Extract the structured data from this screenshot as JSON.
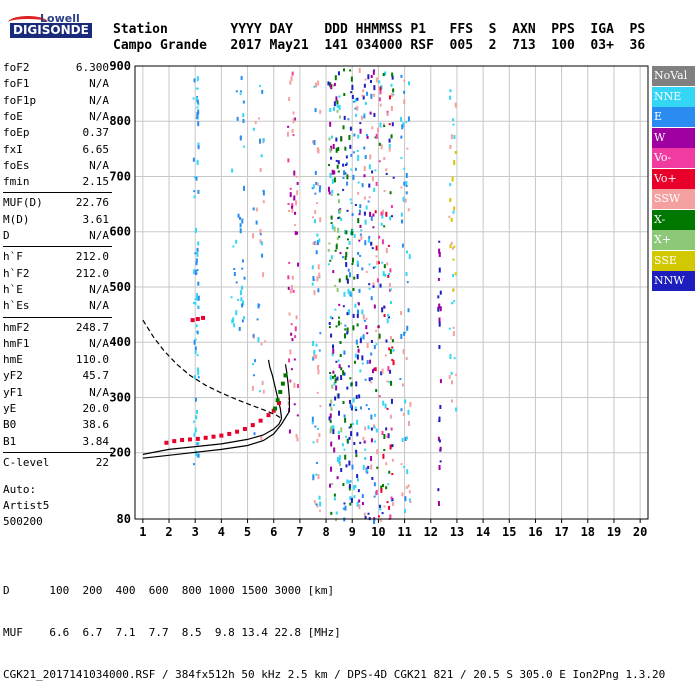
{
  "logo": {
    "brand": "Lowell",
    "product": "DIGISONDE"
  },
  "header": {
    "line1": "Station        YYYY DAY    DDD HHMMSS P1   FFS  S  AXN  PPS  IGA  PS",
    "line2": "Campo Grande   2017 May21  141 034000 RSF  005  2  713  100  03+  36"
  },
  "params": [
    {
      "k": "foF2",
      "v": "6.300"
    },
    {
      "k": "foF1",
      "v": "N/A"
    },
    {
      "k": "foF1p",
      "v": "N/A"
    },
    {
      "k": "foE",
      "v": "N/A"
    },
    {
      "k": "foEp",
      "v": "0.37"
    },
    {
      "k": "fxI",
      "v": "6.65"
    },
    {
      "k": "foEs",
      "v": "N/A"
    },
    {
      "k": "fmin",
      "v": "2.15"
    },
    {
      "k": "MUF(D)",
      "v": "22.76"
    },
    {
      "k": "M(D)",
      "v": "3.61"
    },
    {
      "k": "D",
      "v": "N/A"
    },
    {
      "k": "h`F",
      "v": "212.0"
    },
    {
      "k": "h`F2",
      "v": "212.0"
    },
    {
      "k": "h`E",
      "v": "N/A"
    },
    {
      "k": "h`Es",
      "v": "N/A"
    },
    {
      "k": "hmF2",
      "v": "248.7"
    },
    {
      "k": "hmF1",
      "v": "N/A"
    },
    {
      "k": "hmE",
      "v": "110.0"
    },
    {
      "k": "yF2",
      "v": "45.7"
    },
    {
      "k": "yF1",
      "v": "N/A"
    },
    {
      "k": "yE",
      "v": "20.0"
    },
    {
      "k": "B0",
      "v": "38.6"
    },
    {
      "k": "B1",
      "v": "3.84"
    },
    {
      "k": "C-level",
      "v": "22"
    }
  ],
  "auto": {
    "l1": "Auto:",
    "l2": "Artist5",
    "l3": "500200"
  },
  "legend": [
    {
      "label": "NoVal",
      "color": "#808080"
    },
    {
      "label": "NNE",
      "color": "#33d6f5"
    },
    {
      "label": "E",
      "color": "#2a8cf0"
    },
    {
      "label": "W",
      "color": "#a000a0"
    },
    {
      "label": "Vo-",
      "color": "#f03ca0"
    },
    {
      "label": "Vo+",
      "color": "#e8002a"
    },
    {
      "label": "SSW",
      "color": "#f5a0a0"
    },
    {
      "label": "X-",
      "color": "#007800"
    },
    {
      "label": "X+",
      "color": "#8cc878"
    },
    {
      "label": "SSE",
      "color": "#d2c800"
    },
    {
      "label": "NNW",
      "color": "#1e1ebe"
    }
  ],
  "footer": {
    "d_row": "D      100  200  400  600  800 1000 1500 3000 [km]",
    "muf_row": "MUF    6.6  6.7  7.1  7.7  8.5  9.8 13.4 22.8 [MHz]",
    "info": "CGK21_2017141034000.RSF / 384fx512h 50 kHz 2.5 km / DPS-4D CGK21 821 / 20.5 S 305.0 E Ion2Png 1.3.20"
  },
  "chart_data": {
    "type": "scatter",
    "xlim": [
      0.7,
      20.3
    ],
    "ylim": [
      80,
      900
    ],
    "x_ticks": [
      "1",
      "2",
      "3",
      "4",
      "5",
      "6",
      "7",
      "8",
      "9",
      "10",
      "11",
      "12",
      "13",
      "14",
      "15",
      "16",
      "17",
      "18",
      "19",
      "20"
    ],
    "y_ticks": [
      "80",
      "200",
      "300",
      "400",
      "500",
      "600",
      "700",
      "800",
      "900"
    ],
    "grid": true,
    "legend_position": "right",
    "series": [
      {
        "name": "Vo+",
        "color": "#e8002a",
        "x": [
          1.9,
          2.2,
          2.5,
          2.8,
          3.1,
          3.4,
          3.7,
          4.0,
          4.3,
          4.6,
          4.9,
          5.2,
          5.5,
          5.8,
          6.0,
          6.2,
          2.9,
          3.1,
          3.3
        ],
        "y": [
          218,
          221,
          223,
          224,
          225,
          227,
          229,
          231,
          234,
          238,
          243,
          250,
          258,
          268,
          276,
          290,
          440,
          442,
          444
        ]
      },
      {
        "name": "X-",
        "color": "#007800",
        "x": [
          6.05,
          6.15,
          6.25,
          6.35,
          6.45
        ],
        "y": [
          280,
          295,
          310,
          325,
          340
        ]
      }
    ],
    "profile": {
      "x": [
        1.0,
        2.0,
        3.0,
        4.0,
        5.0,
        5.6,
        6.0,
        6.2,
        6.3
      ],
      "y": [
        197,
        206,
        211,
        216,
        224,
        232,
        243,
        252,
        262
      ]
    },
    "profile_upper": {
      "x": [
        6.3,
        6.25,
        6.15,
        6.05,
        5.95,
        5.85,
        5.8
      ],
      "y": [
        262,
        280,
        300,
        320,
        340,
        355,
        368
      ]
    },
    "model_x": {
      "x": [
        1.0,
        2.5,
        4.0,
        5.0,
        5.6,
        6.0,
        6.3,
        6.6
      ],
      "y": [
        190,
        198,
        206,
        213,
        222,
        234,
        252,
        275
      ]
    },
    "model_x_upper": {
      "x": [
        6.6,
        6.6,
        6.55,
        6.5,
        6.45
      ],
      "y": [
        275,
        300,
        325,
        345,
        360
      ]
    },
    "topside": {
      "x": [
        1.0,
        1.4,
        1.8,
        2.3,
        2.8,
        3.4,
        4.0,
        4.6,
        5.2,
        5.7,
        6.1,
        6.3
      ],
      "y": [
        440,
        410,
        385,
        360,
        340,
        322,
        308,
        296,
        285,
        276,
        268,
        262
      ]
    }
  }
}
